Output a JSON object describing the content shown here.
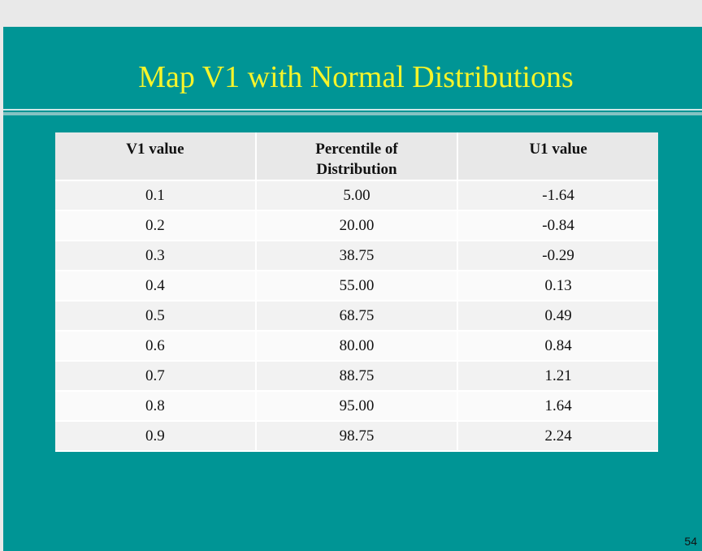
{
  "slide": {
    "title": "Map V1 with Normal Distributions",
    "page_number": "54",
    "colors": {
      "background": "#009595",
      "title": "#f6f42a",
      "header_fill": "#e8e8e8",
      "row_fill": "#f2f2f2"
    }
  },
  "table": {
    "headers": [
      "V1 value",
      "Percentile of Distribution",
      "U1 value"
    ],
    "rows": [
      [
        "0.1",
        "5.00",
        "-1.64"
      ],
      [
        "0.2",
        "20.00",
        "-0.84"
      ],
      [
        "0.3",
        "38.75",
        "-0.29"
      ],
      [
        "0.4",
        "55.00",
        "0.13"
      ],
      [
        "0.5",
        "68.75",
        "0.49"
      ],
      [
        "0.6",
        "80.00",
        "0.84"
      ],
      [
        "0.7",
        "88.75",
        "1.21"
      ],
      [
        "0.8",
        "95.00",
        "1.64"
      ],
      [
        "0.9",
        "98.75",
        "2.24"
      ]
    ]
  }
}
